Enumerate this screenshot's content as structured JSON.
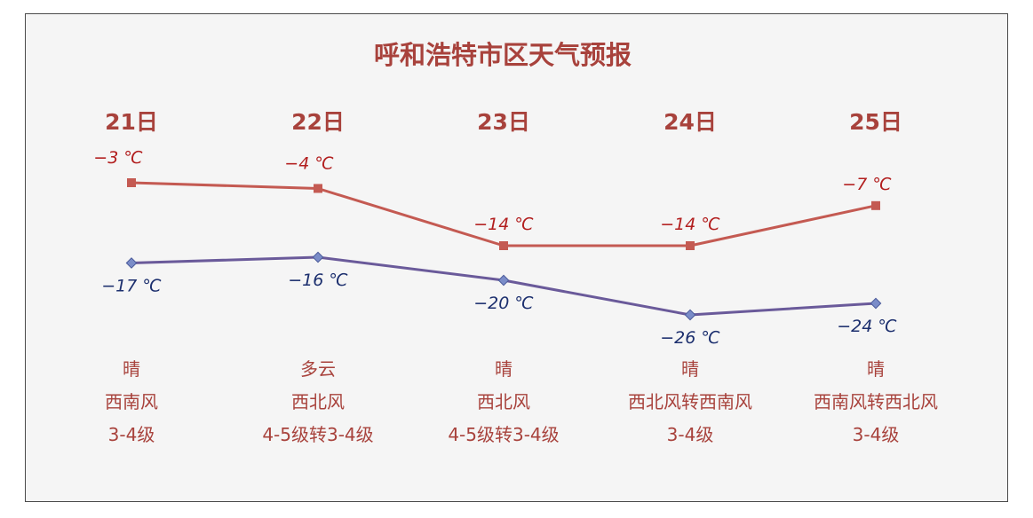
{
  "chart_data": {
    "type": "line",
    "title": "呼和浩特市区天气预报",
    "categories": [
      "21日",
      "22日",
      "23日",
      "24日",
      "25日"
    ],
    "series": [
      {
        "values": [
          -3,
          -4,
          -14,
          -14,
          -7
        ],
        "labels": [
          "−3 ℃",
          "−4 ℃",
          "−14 ℃",
          "−14 ℃",
          "−7 ℃"
        ],
        "color": "#c45a52"
      },
      {
        "values": [
          -17,
          -16,
          -20,
          -26,
          -24
        ],
        "labels": [
          "−17 ℃",
          "−16 ℃",
          "−20 ℃",
          "−26 ℃",
          "−24 ℃"
        ],
        "color": "#6a5a9a"
      }
    ],
    "weather": [
      "晴",
      "多云",
      "晴",
      "晴",
      "晴"
    ],
    "wind_direction": [
      "西南风",
      "西北风",
      "西北风",
      "西北风转西南风",
      "西南风转西北风"
    ],
    "wind_level": [
      "3-4级",
      "4-5级转3-4级",
      "4-5级转3-4级",
      "3-4级",
      "3-4级"
    ],
    "grid": false
  }
}
